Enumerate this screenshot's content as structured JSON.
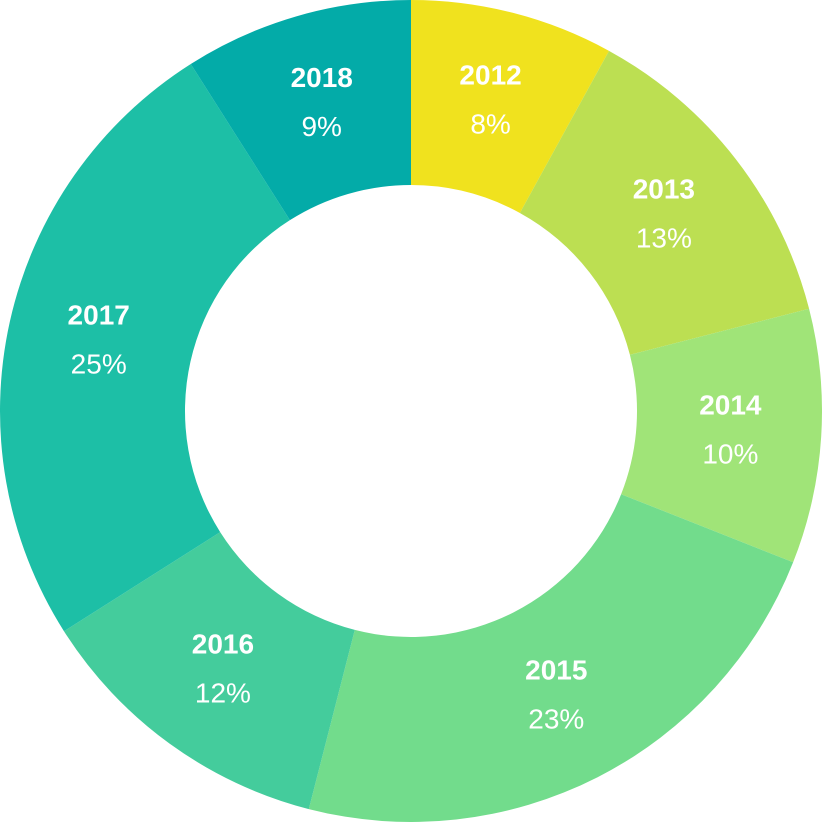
{
  "chart_data": {
    "type": "donut",
    "categories": [
      "2012",
      "2013",
      "2014",
      "2015",
      "2016",
      "2017",
      "2018"
    ],
    "values": [
      8,
      13,
      10,
      23,
      12,
      25,
      9
    ],
    "value_labels": [
      "8%",
      "13%",
      "10%",
      "23%",
      "12%",
      "25%",
      "9%"
    ],
    "colors": [
      "#f0e21e",
      "#bcdf52",
      "#a0e478",
      "#72dc8c",
      "#44cc9c",
      "#1dbfa6",
      "#03aba8"
    ]
  }
}
